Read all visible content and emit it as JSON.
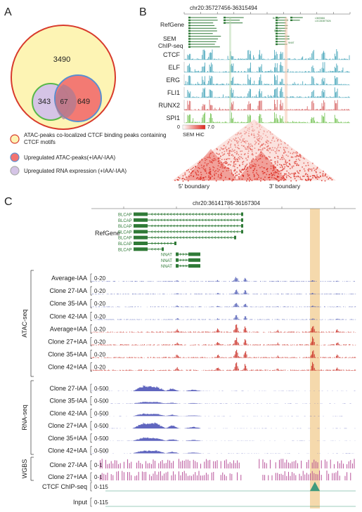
{
  "panel_a": {
    "letter": "A",
    "venn": {
      "yellow_only": "3490",
      "purple_only": "343",
      "overlap": "67",
      "red_only": "649"
    },
    "legend": [
      {
        "label": "ATAC-peaks co-localized CTCF binding peaks containing CTCF motifs",
        "color": "#fdf4b4",
        "stroke": "#d33"
      },
      {
        "label": "Upregulated ATAC-peaks(+IAA/-IAA)",
        "color": "#f27370",
        "stroke": "#5b8fd1"
      },
      {
        "label": "Upregulated RNA expression (+IAA/-IAA)",
        "color": "#d5c4e6",
        "stroke": "#aaa"
      }
    ]
  },
  "panel_b": {
    "letter": "B",
    "coord": "chr20:35727456-36315494",
    "refgene_label": "RefGene",
    "chip_label_1": "SEM",
    "chip_label_2": "ChIP-seq",
    "tracks": [
      {
        "name": "CTCF",
        "color": "#3a9fb5"
      },
      {
        "name": "ELF",
        "color": "#3a9fb5"
      },
      {
        "name": "ERG",
        "color": "#3a9fb5"
      },
      {
        "name": "FLI1",
        "color": "#3a9fb5"
      },
      {
        "name": "RUNX2",
        "color": "#d45a5a"
      },
      {
        "name": "SPI1",
        "color": "#6cbf4a"
      }
    ],
    "scale_min": "0",
    "scale_max": "7.0",
    "hic_label": "SEM HiC",
    "boundary_left": "5' boundary",
    "boundary_right": "3' boundary",
    "gene_labels": [
      "BLCAP",
      "L0605684",
      "LOC283877826",
      "BLCAP",
      "NNAT"
    ]
  },
  "panel_c": {
    "letter": "C",
    "coord": "chr20:36141786-36167304",
    "refgene_label": "RefGene",
    "genes": [
      "BLCAP",
      "BLCAP",
      "BLCAP",
      "BLCAP",
      "BLCAP",
      "BLCAP",
      "BLCAP",
      "NNAT",
      "NNAT",
      "NNAT"
    ],
    "atac_group": "ATAC-seq",
    "atac_range": "0-20",
    "atac_tracks": [
      {
        "name": "Average-IAA",
        "color": "#4b58b2"
      },
      {
        "name": "Clone 27-IAA",
        "color": "#4b58b2"
      },
      {
        "name": "Clone 35-IAA",
        "color": "#4b58b2"
      },
      {
        "name": "Clone 42-IAA",
        "color": "#4b58b2"
      },
      {
        "name": "Average+IAA",
        "color": "#c92b22"
      },
      {
        "name": "Clone 27+IAA",
        "color": "#c92b22"
      },
      {
        "name": "Clone 35+IAA",
        "color": "#c92b22"
      },
      {
        "name": "Clone 42+IAA",
        "color": "#c92b22"
      }
    ],
    "rna_group": "RNA-seq",
    "rna_range": "0-500",
    "rna_tracks": [
      {
        "name": "Clone 27-IAA"
      },
      {
        "name": "Clone 35-IAA"
      },
      {
        "name": "Clone 42-IAA"
      },
      {
        "name": "Clone 27+IAA"
      },
      {
        "name": "Clone 35+IAA"
      },
      {
        "name": "Clone 42+IAA"
      }
    ],
    "rna_color": "#4f55b8",
    "wgbs_group": "WGBS",
    "wgbs_range": "0-1",
    "wgbs_tracks": [
      {
        "name": "Clone 27-IAA"
      },
      {
        "name": "Clone 27+IAA"
      }
    ],
    "wgbs_color": "#b0408f",
    "ctcf_label": "CTCF ChIP-seq",
    "ctcf_range": "0-115",
    "input_label": "Input",
    "input_range": "0-115",
    "signal_color": "#3f9a7c",
    "highlight_color": "#f3d29d"
  }
}
